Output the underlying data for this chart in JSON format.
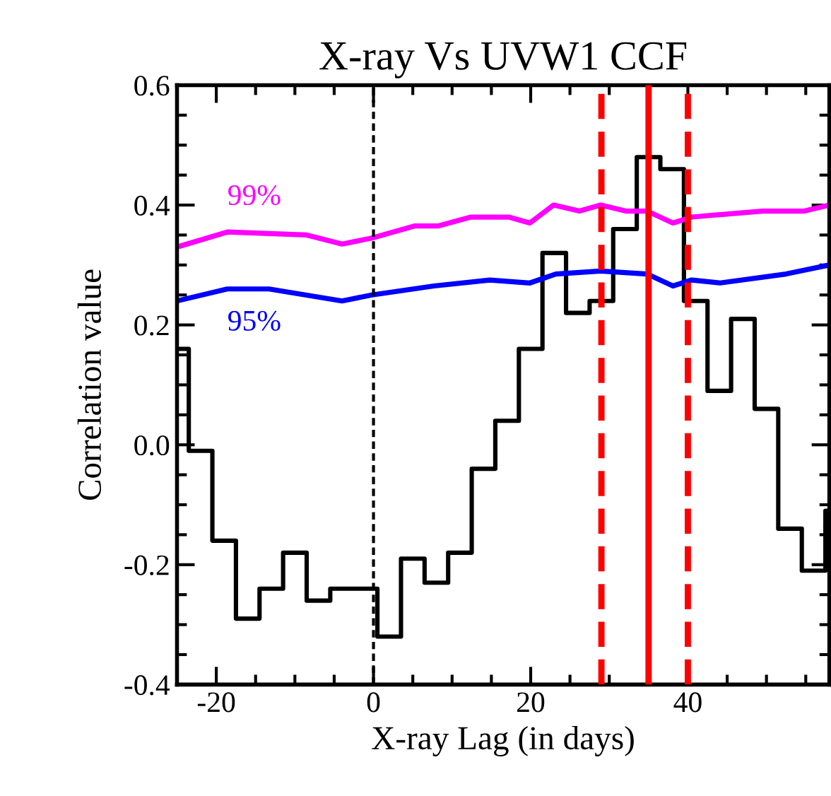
{
  "chart_data": {
    "type": "line",
    "title": "X-ray Vs UVW1 CCF",
    "xlabel": "X-ray Lag (in days)",
    "ylabel": "Correlation value",
    "xlim": [
      -25,
      58
    ],
    "ylim": [
      -0.4,
      0.6
    ],
    "xticks": [
      -20,
      0,
      20,
      40
    ],
    "yticks": [
      -0.4,
      -0.2,
      {
        "value": 0,
        "label": "0.0"
      },
      0.2,
      0.4,
      0.6
    ],
    "grid": false,
    "legend": false,
    "series": [
      {
        "type": "step",
        "color": "#000000",
        "x": [
          -25,
          -23.5,
          -20.5,
          -17.5,
          -14.5,
          -11.5,
          -8.5,
          -5.5,
          -2.5,
          0.5,
          3.5,
          6.5,
          9.5,
          12.5,
          15.5,
          18.5,
          21.5,
          24.5,
          27.5,
          30.5,
          33.5,
          36.5,
          39.5,
          42.5,
          45.5,
          48.5,
          51.5,
          54.5,
          57.5
        ],
        "values": [
          0.16,
          -0.01,
          -0.16,
          -0.29,
          -0.24,
          -0.18,
          -0.26,
          -0.24,
          -0.24,
          -0.32,
          -0.19,
          -0.23,
          -0.18,
          -0.04,
          0.04,
          0.16,
          0.32,
          0.22,
          0.24,
          0.36,
          0.48,
          0.46,
          0.24,
          0.09,
          0.21,
          0.06,
          -0.14,
          -0.21,
          -0.11
        ]
      },
      {
        "name": "99%",
        "color": "#ff00ff",
        "x": [
          -25,
          -18.6,
          -8.5,
          -4.0,
          -0.2,
          5.2,
          8.2,
          12.4,
          17.2,
          19.9,
          22.9,
          26.2,
          28.9,
          32.1,
          34.8,
          38.1,
          40.5,
          49.5,
          54.8,
          58
        ],
        "values": [
          0.33,
          0.355,
          0.35,
          0.335,
          0.345,
          0.365,
          0.365,
          0.38,
          0.38,
          0.37,
          0.4,
          0.39,
          0.4,
          0.39,
          0.39,
          0.37,
          0.38,
          0.39,
          0.39,
          0.4
        ]
      },
      {
        "name": "95%",
        "color": "#0000ff",
        "x": [
          -25,
          -18.6,
          -13.3,
          -4.0,
          -0.2,
          7.7,
          14.8,
          19.9,
          23.2,
          28.9,
          34.8,
          38.1,
          40.5,
          44.1,
          52.5,
          58
        ],
        "values": [
          0.24,
          0.26,
          0.26,
          0.24,
          0.25,
          0.265,
          0.275,
          0.27,
          0.285,
          0.29,
          0.285,
          0.265,
          0.275,
          0.27,
          0.285,
          0.3
        ]
      }
    ],
    "ref_lines": [
      {
        "axis": "x",
        "value": 0,
        "color": "#000000",
        "line_style": "dotted"
      },
      {
        "axis": "x",
        "value": 29,
        "color": "#ff0000",
        "line_style": "dashed"
      },
      {
        "axis": "x",
        "value": 35,
        "color": "#ff0000",
        "line_style": "solid"
      },
      {
        "axis": "x",
        "value": 40,
        "color": "#ff0000",
        "line_style": "dashed"
      }
    ]
  }
}
